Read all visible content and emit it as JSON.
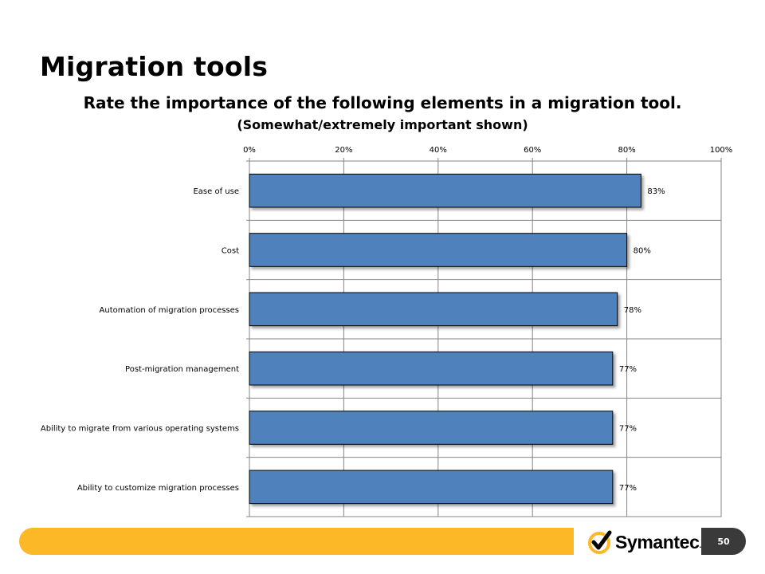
{
  "slide": {
    "title": "Migration tools",
    "page_number": "50"
  },
  "brand": {
    "name": "Symantec",
    "suffix": ".",
    "accent": "#fdb827",
    "dark": "#3a3a3a"
  },
  "chart_data": {
    "type": "bar",
    "orientation": "horizontal",
    "title": "Rate the importance of the following elements in a migration tool.",
    "subtitle": "(Somewhat/extremely important shown)",
    "categories": [
      "Ease of use",
      "Cost",
      "Automation of migration processes",
      "Post-migration management",
      "Ability to migrate from various operating systems",
      "Ability to customize migration processes"
    ],
    "values": [
      83,
      80,
      78,
      77,
      77,
      77
    ],
    "value_labels": [
      "83%",
      "80%",
      "78%",
      "77%",
      "77%",
      "77%"
    ],
    "xlim": [
      0,
      100
    ],
    "x_ticks": [
      "0%",
      "20%",
      "40%",
      "60%",
      "80%",
      "100%"
    ],
    "x_axis_position": "top",
    "grid": true,
    "bar_color": "#4f81bd"
  }
}
